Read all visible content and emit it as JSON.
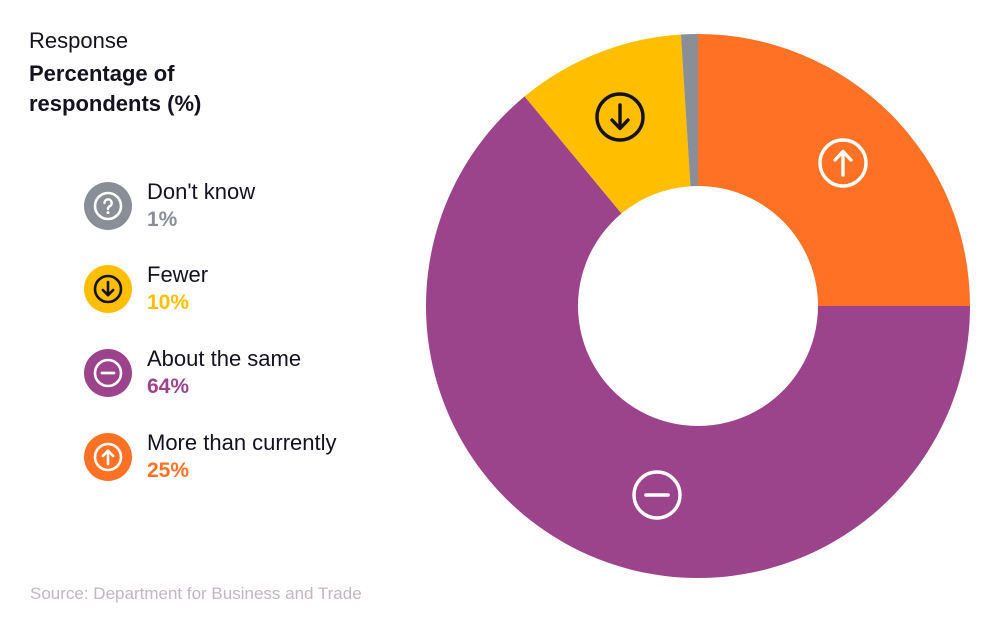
{
  "header": {
    "subtitle": "Response",
    "title": "Percentage of respondents (%)"
  },
  "legend": [
    {
      "label": "Don't know",
      "value": "1%",
      "color": "#8a8f97",
      "icon": "question-icon"
    },
    {
      "label": "Fewer",
      "value": "10%",
      "color": "#ffbf00",
      "icon": "arrow-down-circle-icon"
    },
    {
      "label": "About the same",
      "value": "64%",
      "color": "#9b448c",
      "icon": "minus-circle-icon"
    },
    {
      "label": "More than currently",
      "value": "25%",
      "color": "#ff7225",
      "icon": "arrow-up-circle-icon"
    }
  ],
  "footer": {
    "source": "Source: Department for Business and Trade"
  },
  "chart_data": {
    "type": "pie",
    "variant": "donut",
    "title": "Percentage of respondents (%)",
    "subtitle": "Response",
    "categories": [
      "Don't know",
      "Fewer",
      "About the same",
      "More than currently"
    ],
    "values": [
      1,
      10,
      64,
      25
    ],
    "units": "%",
    "colors": [
      "#8a8f97",
      "#ffbf00",
      "#9b448c",
      "#ff7225"
    ],
    "start_angle_deg": 0,
    "direction": "clockwise_from_top: More than currently, About the same, Fewer, Don't know",
    "legend_position": "left",
    "source": "Source: Department for Business and Trade"
  }
}
